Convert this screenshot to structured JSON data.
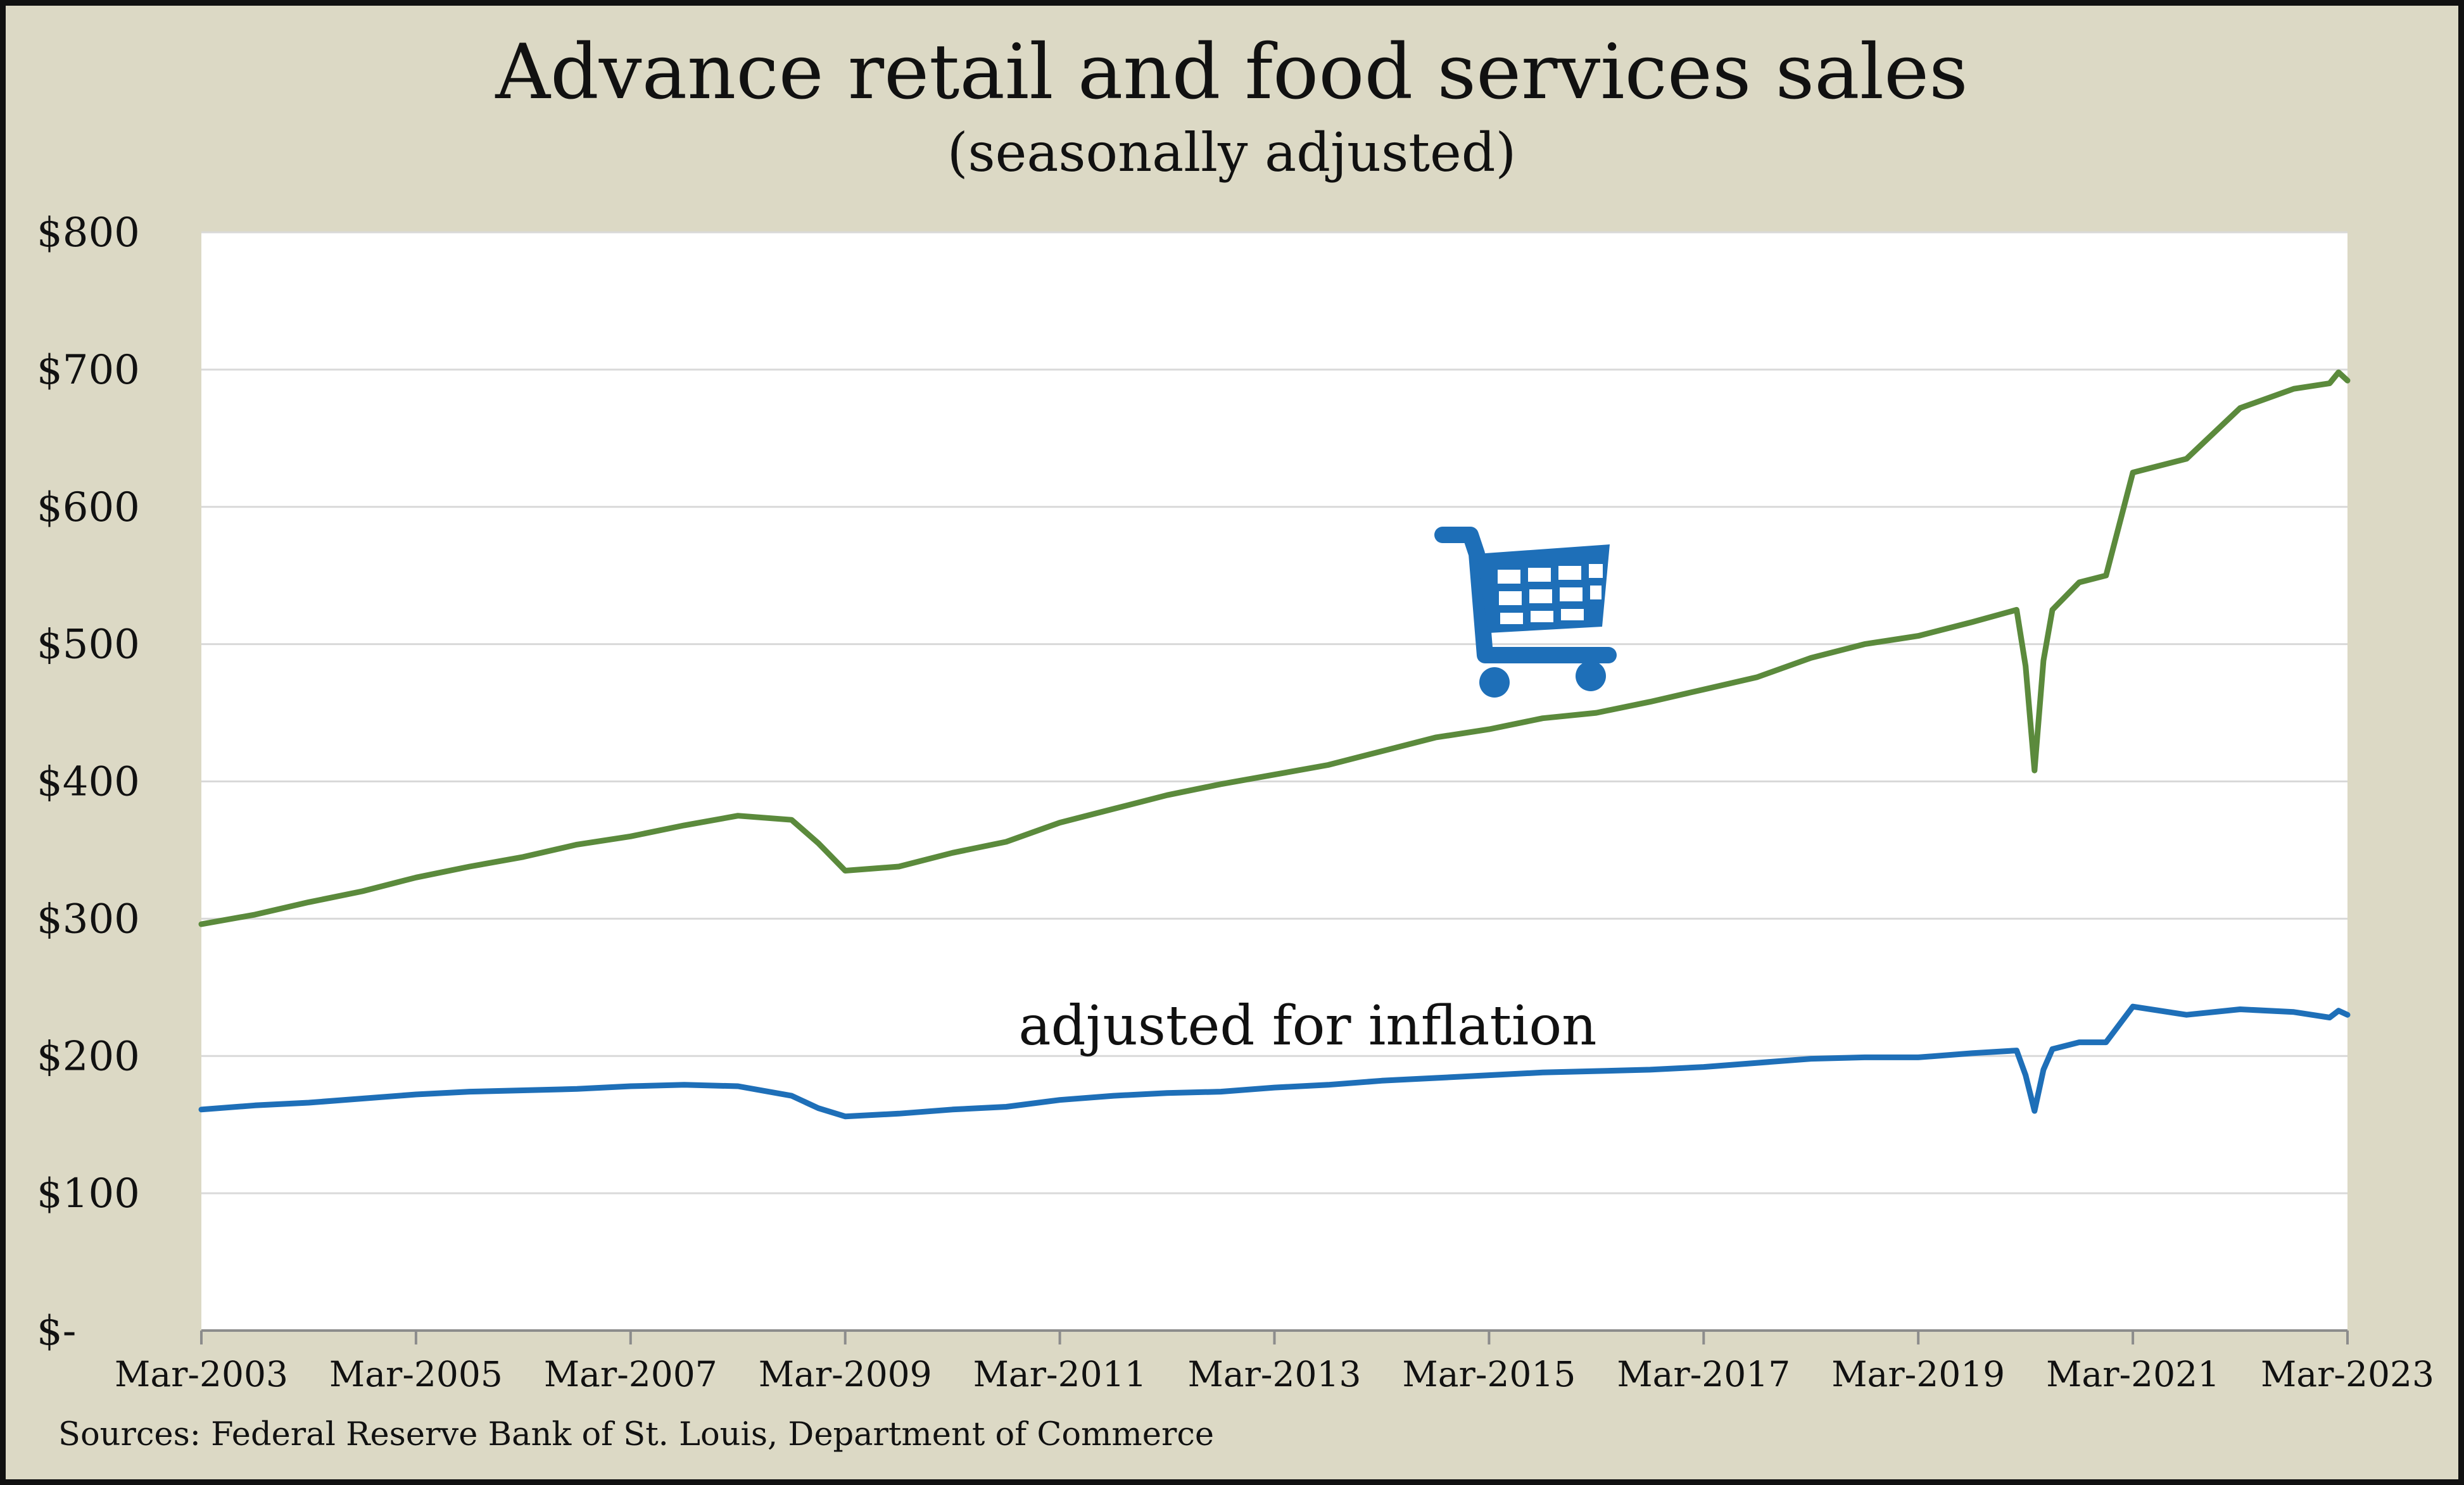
{
  "chart_data": {
    "type": "line",
    "title": "Advance retail and food services sales",
    "subtitle": "(seasonally adjusted)",
    "xlabel": "",
    "ylabel": "",
    "x_start": "Mar-2003",
    "x_end": "Mar-2023",
    "x_tick_labels": [
      "Mar-2003",
      "Mar-2005",
      "Mar-2007",
      "Mar-2009",
      "Mar-2011",
      "Mar-2013",
      "Mar-2015",
      "Mar-2017",
      "Mar-2019",
      "Mar-2021",
      "Mar-2023"
    ],
    "y_tick_labels": [
      "$-",
      "$100",
      "$200",
      "$300",
      "$400",
      "$500",
      "$600",
      "$700",
      "$800"
    ],
    "ylim": [
      0,
      800
    ],
    "grid": true,
    "annotations": [
      {
        "text": "adjusted for inflation"
      }
    ],
    "source": "Sources: Federal Reserve Bank of St. Louis, Department of Commerce",
    "icon": "shopping-cart-icon",
    "series": [
      {
        "color": "#5b8a3c",
        "points": [
          [
            "Mar-2003",
            296
          ],
          [
            "Sep-2003",
            303
          ],
          [
            "Mar-2004",
            312
          ],
          [
            "Sep-2004",
            320
          ],
          [
            "Mar-2005",
            330
          ],
          [
            "Sep-2005",
            338
          ],
          [
            "Mar-2006",
            345
          ],
          [
            "Sep-2006",
            354
          ],
          [
            "Mar-2007",
            360
          ],
          [
            "Sep-2007",
            368
          ],
          [
            "Mar-2008",
            375
          ],
          [
            "Sep-2008",
            372
          ],
          [
            "Dec-2008",
            355
          ],
          [
            "Mar-2009",
            335
          ],
          [
            "Sep-2009",
            338
          ],
          [
            "Mar-2010",
            348
          ],
          [
            "Sep-2010",
            356
          ],
          [
            "Mar-2011",
            370
          ],
          [
            "Sep-2011",
            380
          ],
          [
            "Mar-2012",
            390
          ],
          [
            "Sep-2012",
            398
          ],
          [
            "Mar-2013",
            405
          ],
          [
            "Sep-2013",
            412
          ],
          [
            "Mar-2014",
            422
          ],
          [
            "Sep-2014",
            432
          ],
          [
            "Mar-2015",
            438
          ],
          [
            "Sep-2015",
            446
          ],
          [
            "Mar-2016",
            450
          ],
          [
            "Sep-2016",
            458
          ],
          [
            "Mar-2017",
            467
          ],
          [
            "Sep-2017",
            476
          ],
          [
            "Mar-2018",
            490
          ],
          [
            "Sep-2018",
            500
          ],
          [
            "Mar-2019",
            506
          ],
          [
            "Sep-2019",
            516
          ],
          [
            "Feb-2020",
            525
          ],
          [
            "Mar-2020",
            484
          ],
          [
            "Apr-2020",
            408
          ],
          [
            "May-2020",
            488
          ],
          [
            "Jun-2020",
            525
          ],
          [
            "Sep-2020",
            545
          ],
          [
            "Dec-2020",
            550
          ],
          [
            "Mar-2021",
            625
          ],
          [
            "Sep-2021",
            635
          ],
          [
            "Mar-2022",
            672
          ],
          [
            "Sep-2022",
            686
          ],
          [
            "Jan-2023",
            690
          ],
          [
            "Feb-2023",
            698
          ],
          [
            "Mar-2023",
            692
          ]
        ]
      },
      {
        "color": "#1e6fb8",
        "points": [
          [
            "Mar-2003",
            161
          ],
          [
            "Sep-2003",
            164
          ],
          [
            "Mar-2004",
            166
          ],
          [
            "Sep-2004",
            169
          ],
          [
            "Mar-2005",
            172
          ],
          [
            "Sep-2005",
            174
          ],
          [
            "Mar-2006",
            175
          ],
          [
            "Sep-2006",
            176
          ],
          [
            "Mar-2007",
            178
          ],
          [
            "Sep-2007",
            179
          ],
          [
            "Mar-2008",
            178
          ],
          [
            "Sep-2008",
            171
          ],
          [
            "Dec-2008",
            162
          ],
          [
            "Mar-2009",
            156
          ],
          [
            "Sep-2009",
            158
          ],
          [
            "Mar-2010",
            161
          ],
          [
            "Sep-2010",
            163
          ],
          [
            "Mar-2011",
            168
          ],
          [
            "Sep-2011",
            171
          ],
          [
            "Mar-2012",
            173
          ],
          [
            "Sep-2012",
            174
          ],
          [
            "Mar-2013",
            177
          ],
          [
            "Sep-2013",
            179
          ],
          [
            "Mar-2014",
            182
          ],
          [
            "Sep-2014",
            184
          ],
          [
            "Mar-2015",
            186
          ],
          [
            "Sep-2015",
            188
          ],
          [
            "Mar-2016",
            189
          ],
          [
            "Sep-2016",
            190
          ],
          [
            "Mar-2017",
            192
          ],
          [
            "Sep-2017",
            195
          ],
          [
            "Mar-2018",
            198
          ],
          [
            "Sep-2018",
            199
          ],
          [
            "Mar-2019",
            199
          ],
          [
            "Sep-2019",
            202
          ],
          [
            "Feb-2020",
            204
          ],
          [
            "Mar-2020",
            186
          ],
          [
            "Apr-2020",
            160
          ],
          [
            "May-2020",
            190
          ],
          [
            "Jun-2020",
            205
          ],
          [
            "Sep-2020",
            210
          ],
          [
            "Dec-2020",
            210
          ],
          [
            "Mar-2021",
            236
          ],
          [
            "Sep-2021",
            230
          ],
          [
            "Mar-2022",
            234
          ],
          [
            "Sep-2022",
            232
          ],
          [
            "Jan-2023",
            228
          ],
          [
            "Feb-2023",
            233
          ],
          [
            "Mar-2023",
            230
          ]
        ]
      }
    ]
  }
}
